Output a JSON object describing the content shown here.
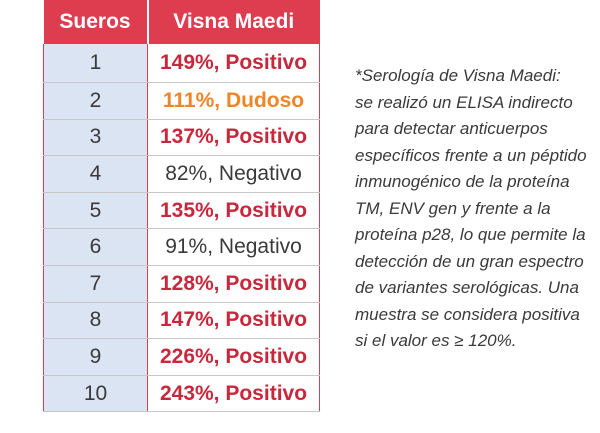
{
  "table": {
    "headers": [
      "Sueros",
      "Visna Maedi"
    ],
    "rows": [
      {
        "suero": "1",
        "valor": "149%, Positivo",
        "status": "pos"
      },
      {
        "suero": "2",
        "valor": "111%, Dudoso",
        "status": "dud"
      },
      {
        "suero": "3",
        "valor": "137%, Positivo",
        "status": "pos"
      },
      {
        "suero": "4",
        "valor": "82%, Negativo",
        "status": "neg"
      },
      {
        "suero": "5",
        "valor": "135%, Positivo",
        "status": "pos"
      },
      {
        "suero": "6",
        "valor": "91%, Negativo",
        "status": "neg"
      },
      {
        "suero": "7",
        "valor": "128%, Positivo",
        "status": "pos"
      },
      {
        "suero": "8",
        "valor": "147%, Positivo",
        "status": "pos"
      },
      {
        "suero": "9",
        "valor": "226%, Positivo",
        "status": "pos"
      },
      {
        "suero": "10",
        "valor": "243%, Positivo",
        "status": "pos"
      }
    ]
  },
  "note": {
    "lines": [
      "*Serología de Visna Maedi:",
      "se realizó un ELISA indirecto",
      "para detectar anticuerpos",
      "específicos frente a un péptido",
      "inmunogénico de la proteína",
      "TM, ENV gen y frente a la",
      "proteína p28, lo que permite la",
      "detección de un gran espectro",
      "de variantes serológicas. Una",
      "muestra se considera positiva",
      "si el valor es ≥ 120%."
    ]
  },
  "colors": {
    "header_bg": "#de3c4f",
    "row_num_bg": "#dbe4f2",
    "positivo": "#c8283c",
    "dudoso": "#ef8527",
    "negativo": "#3a3a3a"
  }
}
